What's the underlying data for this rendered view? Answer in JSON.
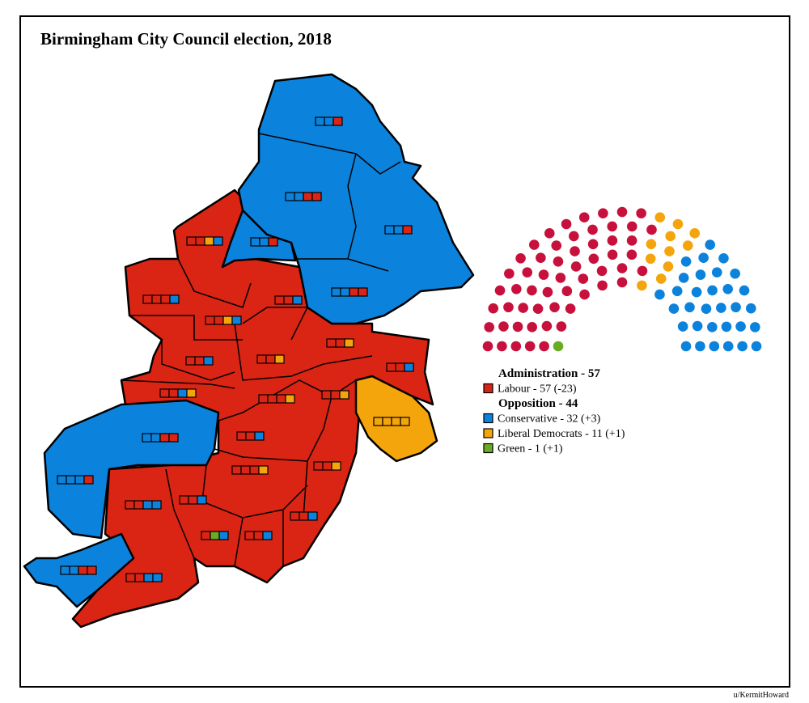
{
  "title": "Birmingham City Council election, 2018",
  "legend": {
    "groups": [
      {
        "heading": "Administration - 57",
        "entries": [
          {
            "label": "Labour - 57 (-23)",
            "color": "#d52517"
          }
        ]
      },
      {
        "heading": "Opposition - 44",
        "entries": [
          {
            "label": "Conservative - 32 (+3)",
            "color": "#0b82dc"
          },
          {
            "label": "Liberal Democrats - 11 (+1)",
            "color": "#f5a50c"
          },
          {
            "label": "Green - 1 (+1)",
            "color": "#6aab24"
          }
        ]
      }
    ]
  },
  "hemicycle": {
    "parties": [
      {
        "color": "#6aab24",
        "seats": 1
      },
      {
        "color": "#c8103c",
        "seats": 57
      },
      {
        "color": "#f5a50c",
        "seats": 11
      },
      {
        "color": "#0b82dc",
        "seats": 32
      }
    ]
  },
  "credit": "u/KermitHoward"
}
